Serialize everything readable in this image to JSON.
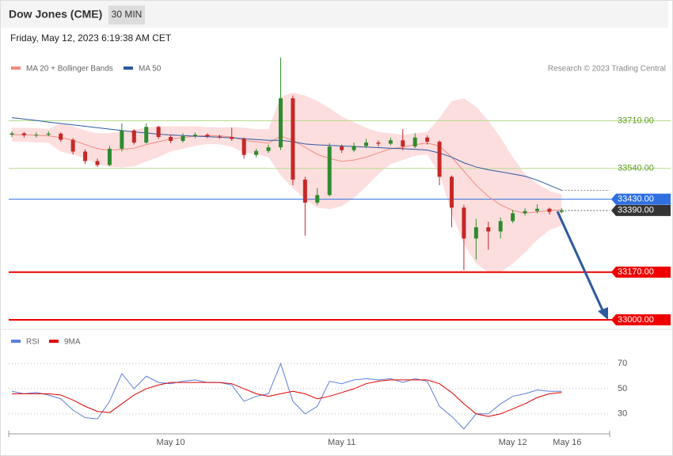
{
  "header": {
    "title": "Dow Jones (CME)",
    "interval": "30 MIN",
    "timestamp": "Friday, May 12, 2023 6:19:38 AM CET"
  },
  "chart_data": [
    {
      "type": "candlestick",
      "credit": "Research © 2023 Trading Central",
      "open": [
        33660,
        33665,
        33658,
        33660,
        33664,
        33642,
        33600,
        33566,
        33552,
        33610,
        33675,
        33632,
        33688,
        33652,
        33638,
        33655,
        33660,
        33654,
        33652,
        33645,
        33588,
        33602,
        33615,
        33790,
        33500,
        33418,
        33445,
        33618,
        33605,
        33620,
        33632,
        33628,
        33640,
        33618,
        33650,
        33635,
        33510,
        33400,
        33290,
        33330,
        33315,
        33352,
        33380,
        33388,
        33396,
        33385
      ],
      "high": [
        33672,
        33670,
        33668,
        33672,
        33668,
        33648,
        33608,
        33575,
        33620,
        33700,
        33680,
        33700,
        33692,
        33660,
        33665,
        33668,
        33665,
        33660,
        33685,
        33650,
        33610,
        33625,
        33935,
        33800,
        33510,
        33470,
        33630,
        33625,
        33632,
        33645,
        33640,
        33650,
        33680,
        33665,
        33658,
        33640,
        33515,
        33410,
        33360,
        33350,
        33365,
        33392,
        33398,
        33412,
        33400,
        33398
      ],
      "low": [
        33652,
        33650,
        33650,
        33655,
        33635,
        33590,
        33555,
        33545,
        33548,
        33600,
        33625,
        33628,
        33645,
        33630,
        33632,
        33648,
        33648,
        33645,
        33638,
        33575,
        33580,
        33595,
        33605,
        33480,
        33300,
        33410,
        33440,
        33595,
        33598,
        33612,
        33618,
        33622,
        33605,
        33612,
        33625,
        33480,
        33330,
        33177,
        33215,
        33250,
        33290,
        33345,
        33372,
        33380,
        33375,
        33380
      ],
      "close": [
        33665,
        33658,
        33660,
        33664,
        33642,
        33600,
        33566,
        33552,
        33610,
        33675,
        33632,
        33688,
        33652,
        33638,
        33655,
        33660,
        33654,
        33652,
        33645,
        33588,
        33602,
        33615,
        33790,
        33500,
        33418,
        33445,
        33618,
        33605,
        33620,
        33632,
        33628,
        33640,
        33618,
        33650,
        33635,
        33510,
        33400,
        33290,
        33330,
        33315,
        33352,
        33380,
        33388,
        33396,
        33385,
        33390
      ],
      "up_color": "#2e8b2e",
      "down_color": "#c62828",
      "series": [
        {
          "name": "MA 20 + Bollinger Bands",
          "color": "#f28b82",
          "band_color": "#fddede",
          "values": [
            33660,
            33660,
            33658,
            33656,
            33650,
            33640,
            33625,
            33610,
            33605,
            33608,
            33612,
            33625,
            33635,
            33645,
            33650,
            33655,
            33657,
            33656,
            33652,
            33640,
            33635,
            33630,
            33655,
            33640,
            33615,
            33590,
            33575,
            33565,
            33570,
            33580,
            33595,
            33610,
            33615,
            33625,
            33630,
            33620,
            33580,
            33530,
            33480,
            33440,
            33410,
            33390,
            33380,
            33385,
            33390,
            33392
          ],
          "upper": [
            33685,
            33685,
            33683,
            33681,
            33700,
            33690,
            33675,
            33665,
            33665,
            33673,
            33677,
            33685,
            33690,
            33690,
            33690,
            33690,
            33687,
            33686,
            33687,
            33685,
            33680,
            33680,
            33795,
            33810,
            33800,
            33780,
            33755,
            33725,
            33705,
            33685,
            33670,
            33665,
            33660,
            33665,
            33670,
            33720,
            33780,
            33790,
            33760,
            33710,
            33650,
            33580,
            33520,
            33485,
            33460,
            33447
          ],
          "lower": [
            33635,
            33635,
            33633,
            33631,
            33600,
            33590,
            33575,
            33555,
            33545,
            33543,
            33547,
            33565,
            33580,
            33600,
            33610,
            33620,
            33627,
            33626,
            33617,
            33595,
            33590,
            33580,
            33515,
            33470,
            33430,
            33400,
            33395,
            33405,
            33435,
            33475,
            33520,
            33555,
            33570,
            33585,
            33590,
            33520,
            33380,
            33270,
            33200,
            33170,
            33170,
            33200,
            33240,
            33285,
            33320,
            33337
          ]
        },
        {
          "name": "MA 50",
          "color": "#2c5aa0",
          "values": [
            33721,
            33716,
            33711,
            33705,
            33700,
            33695,
            33690,
            33685,
            33680,
            33675,
            33670,
            33666,
            33662,
            33659,
            33657,
            33655,
            33653,
            33651,
            33649,
            33646,
            33643,
            33640,
            33640,
            33635,
            33627,
            33624,
            33622,
            33620,
            33618,
            33616,
            33614,
            33612,
            33610,
            33608,
            33605,
            33595,
            33580,
            33560,
            33545,
            33535,
            33528,
            33520,
            33512,
            33498,
            33480,
            33462
          ]
        }
      ],
      "ylim": [
        32969,
        33971
      ],
      "levels": [
        {
          "value": 33710,
          "label": "33710.00",
          "color": "#b9dc8f",
          "text_color": "#5a9e1e",
          "style": "plain"
        },
        {
          "value": 33540,
          "label": "33540.00",
          "color": "#b9dc8f",
          "text_color": "#5a9e1e",
          "style": "plain"
        },
        {
          "value": 33430,
          "label": "33430.00",
          "color": "#2f6fe0",
          "text_color": "#ffffff",
          "style": "box"
        },
        {
          "value": 33390,
          "label": "33390.00",
          "color": "#333333",
          "text_color": "#ffffff",
          "style": "dotted"
        },
        {
          "value": 33170,
          "label": "33170.00",
          "color": "#ee0000",
          "text_color": "#ffffff",
          "style": "thick"
        },
        {
          "value": 33000,
          "label": "33000.00",
          "color": "#ee0000",
          "text_color": "#ffffff",
          "style": "thick"
        }
      ]
    },
    {
      "type": "line",
      "categories": [
        null,
        null,
        null,
        null,
        null,
        null,
        null,
        null,
        null,
        null,
        null,
        null,
        null,
        "May 10",
        null,
        null,
        null,
        null,
        null,
        null,
        null,
        null,
        null,
        null,
        null,
        null,
        null,
        "May 11",
        null,
        null,
        null,
        null,
        null,
        null,
        null,
        null,
        null,
        null,
        null,
        null,
        null,
        "May 12",
        null,
        null,
        null,
        "May 16"
      ],
      "series": [
        {
          "name": "RSI",
          "color": "#5b7fdb",
          "values": [
            48,
            46,
            47,
            45,
            42,
            33,
            27,
            26,
            40,
            62,
            50,
            60,
            55,
            54,
            56,
            57,
            55,
            55,
            53,
            40,
            44,
            46,
            70,
            40,
            30,
            36,
            56,
            54,
            57,
            58,
            57,
            58,
            55,
            58,
            56,
            36,
            28,
            18,
            30,
            30,
            38,
            44,
            46,
            49,
            48,
            48
          ]
        },
        {
          "name": "9MA",
          "color": "#e00000",
          "values": [
            46,
            46,
            46,
            46,
            45,
            41,
            36,
            32,
            31,
            38,
            45,
            50,
            53,
            55,
            55,
            55,
            55,
            55,
            54,
            50,
            46,
            44,
            46,
            48,
            46,
            42,
            44,
            47,
            50,
            54,
            56,
            57,
            57,
            57,
            57,
            54,
            47,
            38,
            30,
            28,
            30,
            34,
            38,
            43,
            46,
            47
          ]
        }
      ],
      "ylim": [
        16,
        79
      ],
      "yticks": [
        30,
        50,
        70
      ],
      "grid": true
    }
  ]
}
